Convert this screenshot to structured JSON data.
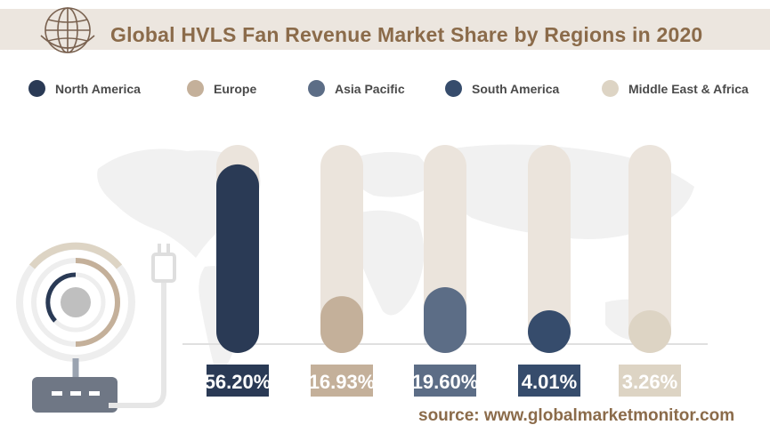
{
  "title": "Global HVLS Fan Revenue Market Share by Regions in 2020",
  "source": "source: www.globalmarketmonitor.com",
  "chart_data": {
    "type": "bar",
    "categories": [
      "North America",
      "Europe",
      "Asia Pacific",
      "South America",
      "Middle East & Africa"
    ],
    "values": [
      56.2,
      16.93,
      19.6,
      4.01,
      3.26
    ],
    "value_labels": [
      "56.20%",
      "16.93%",
      "19.60%",
      "4.01%",
      "3.26%"
    ],
    "colors": [
      "#2a3a55",
      "#c4b09a",
      "#5c6d86",
      "#364c6c",
      "#ddd4c4"
    ],
    "track_color": "#ebe4dc",
    "ylim": [
      0,
      62
    ],
    "legend_position": "top",
    "grid": false
  }
}
